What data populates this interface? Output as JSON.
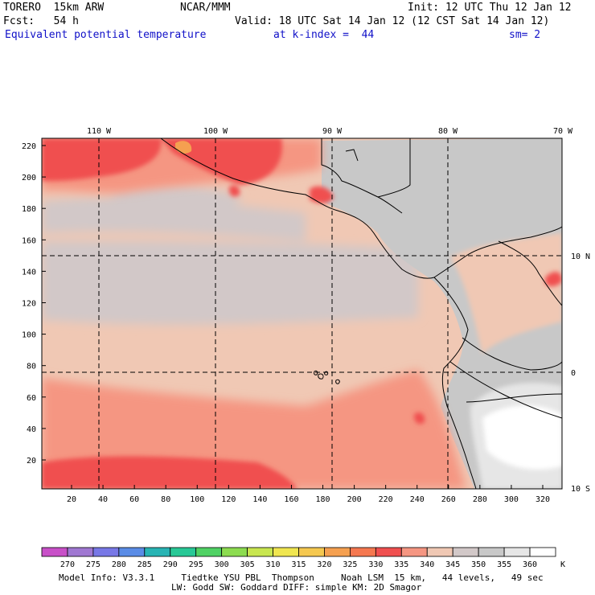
{
  "header": {
    "model": "TORERO  15km ARW",
    "center": "NCAR/MMM",
    "init": "Init: 12 UTC Thu 12 Jan 12",
    "fcst": "Fcst:   54 h",
    "valid": "Valid: 18 UTC Sat 14 Jan 12 (12 CST Sat 14 Jan 12)",
    "field": "Equivalent potential temperature",
    "level": "at k-index =  44",
    "smoothing": "sm= 2"
  },
  "map": {
    "lon_labels": [
      "110 W",
      "100 W",
      "90 W",
      "80 W",
      "70 W"
    ],
    "lat_labels": [
      "10 N",
      "0",
      "10 S"
    ],
    "y_ticks": [
      "220",
      "200",
      "180",
      "160",
      "140",
      "120",
      "100",
      "80",
      "60",
      "40",
      "20"
    ],
    "x_ticks": [
      "20",
      "40",
      "60",
      "80",
      "100",
      "120",
      "140",
      "160",
      "180",
      "200",
      "220",
      "240",
      "260",
      "280",
      "300",
      "320"
    ]
  },
  "colorbar": {
    "unit": "K",
    "labels": [
      "270",
      "275",
      "280",
      "285",
      "290",
      "295",
      "300",
      "305",
      "310",
      "315",
      "320",
      "325",
      "330",
      "335",
      "340",
      "345",
      "350",
      "355",
      "360"
    ],
    "colors": [
      "#c850c8",
      "#a078d2",
      "#7878e6",
      "#5a8ce6",
      "#28b4b4",
      "#28c896",
      "#50d264",
      "#8cdc50",
      "#c8e650",
      "#f0e650",
      "#f5c850",
      "#f5a050",
      "#f57850",
      "#f05050",
      "#f59682",
      "#f0c8b4",
      "#d2c8c8",
      "#c8c8c8",
      "#e6e6e6",
      "#ffffff"
    ]
  },
  "footer": {
    "line1": "Model Info: V3.3.1     Tiedtke YSU PBL  Thompson     Noah LSM  15 km,   44 levels,   49 sec",
    "line2": "LW: Godd SW: Goddard DIFF: simple KM: 2D Smagor"
  }
}
